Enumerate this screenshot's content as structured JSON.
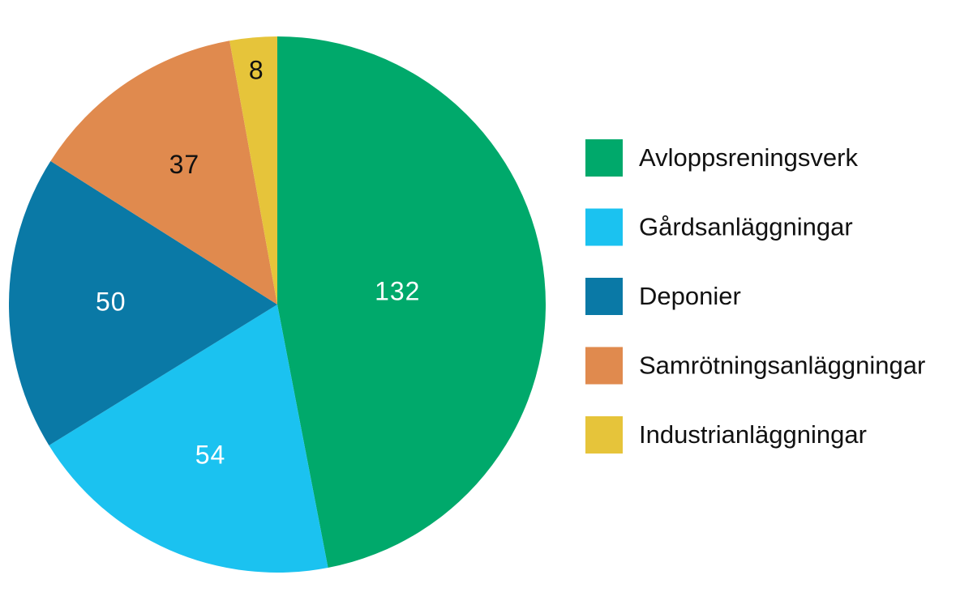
{
  "chart_data": {
    "type": "pie",
    "categories": [
      "Avloppsreningsverk",
      "Gårdsanläggningar",
      "Deponier",
      "Samrötningsanläggningar",
      "Industrianläggningar"
    ],
    "values": [
      132,
      54,
      50,
      37,
      8
    ],
    "colors": [
      "#00a96b",
      "#1bc2f0",
      "#0a79a6",
      "#e08a4e",
      "#e6c43a"
    ],
    "label_colors": [
      "#ffffff",
      "#ffffff",
      "#ffffff",
      "#111111",
      "#111111"
    ],
    "legend": "right"
  }
}
